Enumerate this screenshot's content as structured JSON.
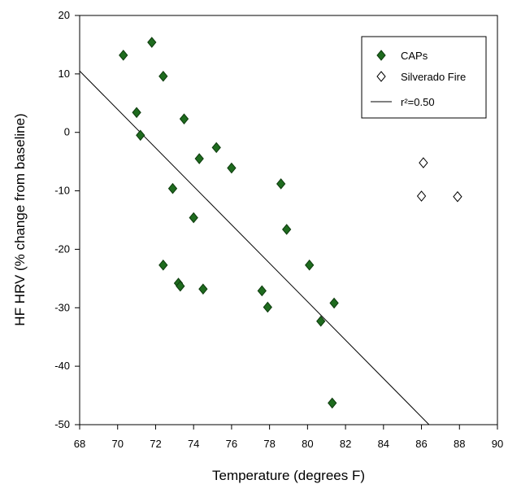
{
  "chart_data": {
    "type": "scatter",
    "xlabel": "Temperature (degrees F)",
    "ylabel": "HF HRV (% change from baseline)",
    "xlim": [
      68,
      90
    ],
    "ylim": [
      -50,
      20
    ],
    "xticks": [
      68,
      70,
      72,
      74,
      76,
      78,
      80,
      82,
      84,
      86,
      88,
      90
    ],
    "yticks": [
      -50,
      -40,
      -30,
      -20,
      -10,
      0,
      10,
      20
    ],
    "legend_position": "top-right",
    "series": [
      {
        "name": "CAPs",
        "marker": "filled-diamond",
        "color": "#1e6b1e",
        "points": [
          {
            "x": 70.3,
            "y": 13.2
          },
          {
            "x": 71.0,
            "y": 3.4
          },
          {
            "x": 71.2,
            "y": -0.5
          },
          {
            "x": 71.8,
            "y": 15.4
          },
          {
            "x": 72.4,
            "y": 9.6
          },
          {
            "x": 72.4,
            "y": -22.7
          },
          {
            "x": 72.9,
            "y": -9.6
          },
          {
            "x": 73.2,
            "y": -25.8
          },
          {
            "x": 73.3,
            "y": -26.3
          },
          {
            "x": 73.5,
            "y": 2.3
          },
          {
            "x": 74.0,
            "y": -14.6
          },
          {
            "x": 74.3,
            "y": -4.5
          },
          {
            "x": 74.5,
            "y": -26.8
          },
          {
            "x": 75.2,
            "y": -2.6
          },
          {
            "x": 76.0,
            "y": -6.1
          },
          {
            "x": 77.6,
            "y": -27.1
          },
          {
            "x": 77.9,
            "y": -29.9
          },
          {
            "x": 78.6,
            "y": -8.8
          },
          {
            "x": 78.9,
            "y": -16.6
          },
          {
            "x": 80.1,
            "y": -22.7
          },
          {
            "x": 80.7,
            "y": -32.3
          },
          {
            "x": 81.3,
            "y": -46.3
          },
          {
            "x": 81.4,
            "y": -29.2
          }
        ]
      },
      {
        "name": "Silverado Fire",
        "marker": "open-diamond",
        "color": "#000000",
        "points": [
          {
            "x": 86.0,
            "y": -10.9
          },
          {
            "x": 86.1,
            "y": -5.2
          },
          {
            "x": 87.9,
            "y": -11.0
          }
        ]
      }
    ],
    "fit_line": {
      "label": "r²=0.50",
      "from": {
        "x": 68.0,
        "y": 10.5
      },
      "to": {
        "x": 86.4,
        "y": -50.0
      }
    }
  }
}
